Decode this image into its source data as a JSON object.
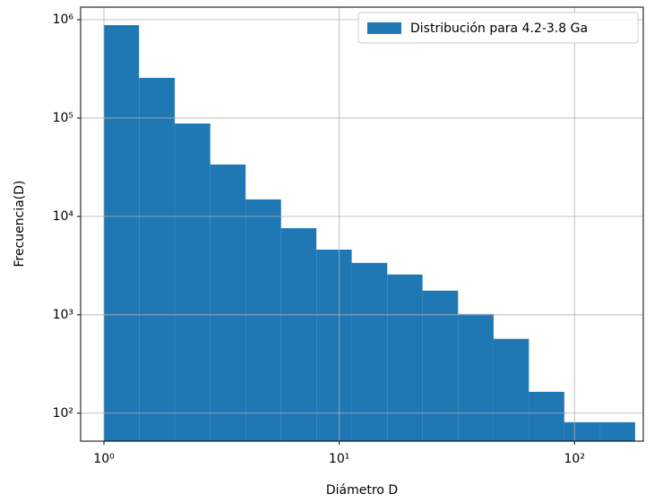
{
  "chart_data": {
    "type": "histogram",
    "xlabel": "Diámetro D",
    "ylabel": "Frecuencia(D)",
    "bins": [
      1,
      1.41,
      2,
      2.83,
      4,
      5.66,
      8,
      11.3,
      16,
      22.6,
      32,
      45.3,
      64,
      90.5,
      128,
      181
    ],
    "values": [
      880000,
      256000,
      88000,
      33700,
      14900,
      7600,
      4600,
      3370,
      2570,
      1760,
      1020,
      570,
      165,
      81,
      81
    ],
    "series_name": "Distribución para 4.2-3.8 Ga",
    "color": "#1f77b4",
    "xscale": "log",
    "yscale": "log",
    "xlim": [
      0.796,
      196
    ],
    "ylim": [
      52,
      1340000
    ],
    "xticks": [
      {
        "value": 1,
        "label": "10⁰"
      },
      {
        "value": 10,
        "label": "10¹"
      },
      {
        "value": 100,
        "label": "10²"
      }
    ],
    "yticks": [
      {
        "value": 100,
        "label": "10²"
      },
      {
        "value": 1000,
        "label": "10³"
      },
      {
        "value": 10000,
        "label": "10⁴"
      },
      {
        "value": 100000,
        "label": "10⁵"
      },
      {
        "value": 1000000,
        "label": "10⁶"
      }
    ],
    "grid": true,
    "legend": "upper right"
  }
}
